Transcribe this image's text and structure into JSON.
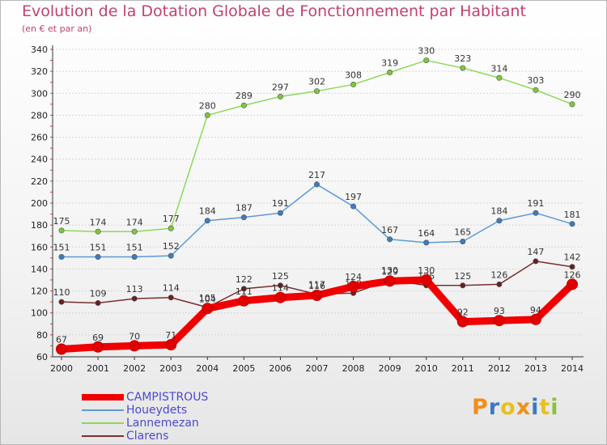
{
  "chart_data": {
    "type": "line",
    "title": "Evolution de la Dotation Globale de Fonctionnement par Habitant",
    "subtitle": "(en € et par an)",
    "xlabel": "",
    "ylabel": "",
    "x": [
      "2000",
      "2001",
      "2002",
      "2003",
      "2004",
      "2005",
      "2006",
      "2007",
      "2008",
      "2009",
      "2010",
      "2011",
      "2012",
      "2013",
      "2014"
    ],
    "ylim": [
      60,
      340
    ],
    "yticks": [
      60,
      80,
      100,
      120,
      140,
      160,
      180,
      200,
      220,
      240,
      260,
      280,
      300,
      320,
      340
    ],
    "grid": true,
    "legend_position": "bottom-left",
    "series": [
      {
        "name": "Lannemezan",
        "color": "#8ed85a",
        "marker": "#7cc83c",
        "values": [
          175,
          174,
          174,
          177,
          280,
          289,
          297,
          302,
          308,
          319,
          330,
          323,
          314,
          303,
          290
        ]
      },
      {
        "name": "Houeydets",
        "color": "#5a9ad8",
        "marker": "#3c7cc0",
        "values": [
          151,
          151,
          151,
          152,
          184,
          187,
          191,
          217,
          197,
          167,
          164,
          165,
          184,
          191,
          181
        ]
      },
      {
        "name": "Clarens",
        "color": "#7a2e2e",
        "marker": "#6a1e1e",
        "values": [
          110,
          109,
          113,
          114,
          105,
          122,
          125,
          117,
          118,
          130,
          125,
          125,
          126,
          147,
          142
        ]
      },
      {
        "name": "CAMPISTROUS",
        "color": "#f00000",
        "marker": "#e00000",
        "values": [
          67,
          69,
          70,
          71,
          104,
          111,
          114,
          116,
          124,
          129,
          130,
          92,
          93,
          94,
          126
        ]
      }
    ],
    "legend_order": [
      "CAMPISTROUS",
      "Houeydets",
      "Lannemezan",
      "Clarens"
    ]
  },
  "logo": {
    "text": "Proxiti",
    "colors": [
      "#f09018",
      "#3a78c8",
      "#e8c020",
      "#f09018",
      "#3a78c8",
      "#e8c020",
      "#8ac040"
    ]
  }
}
